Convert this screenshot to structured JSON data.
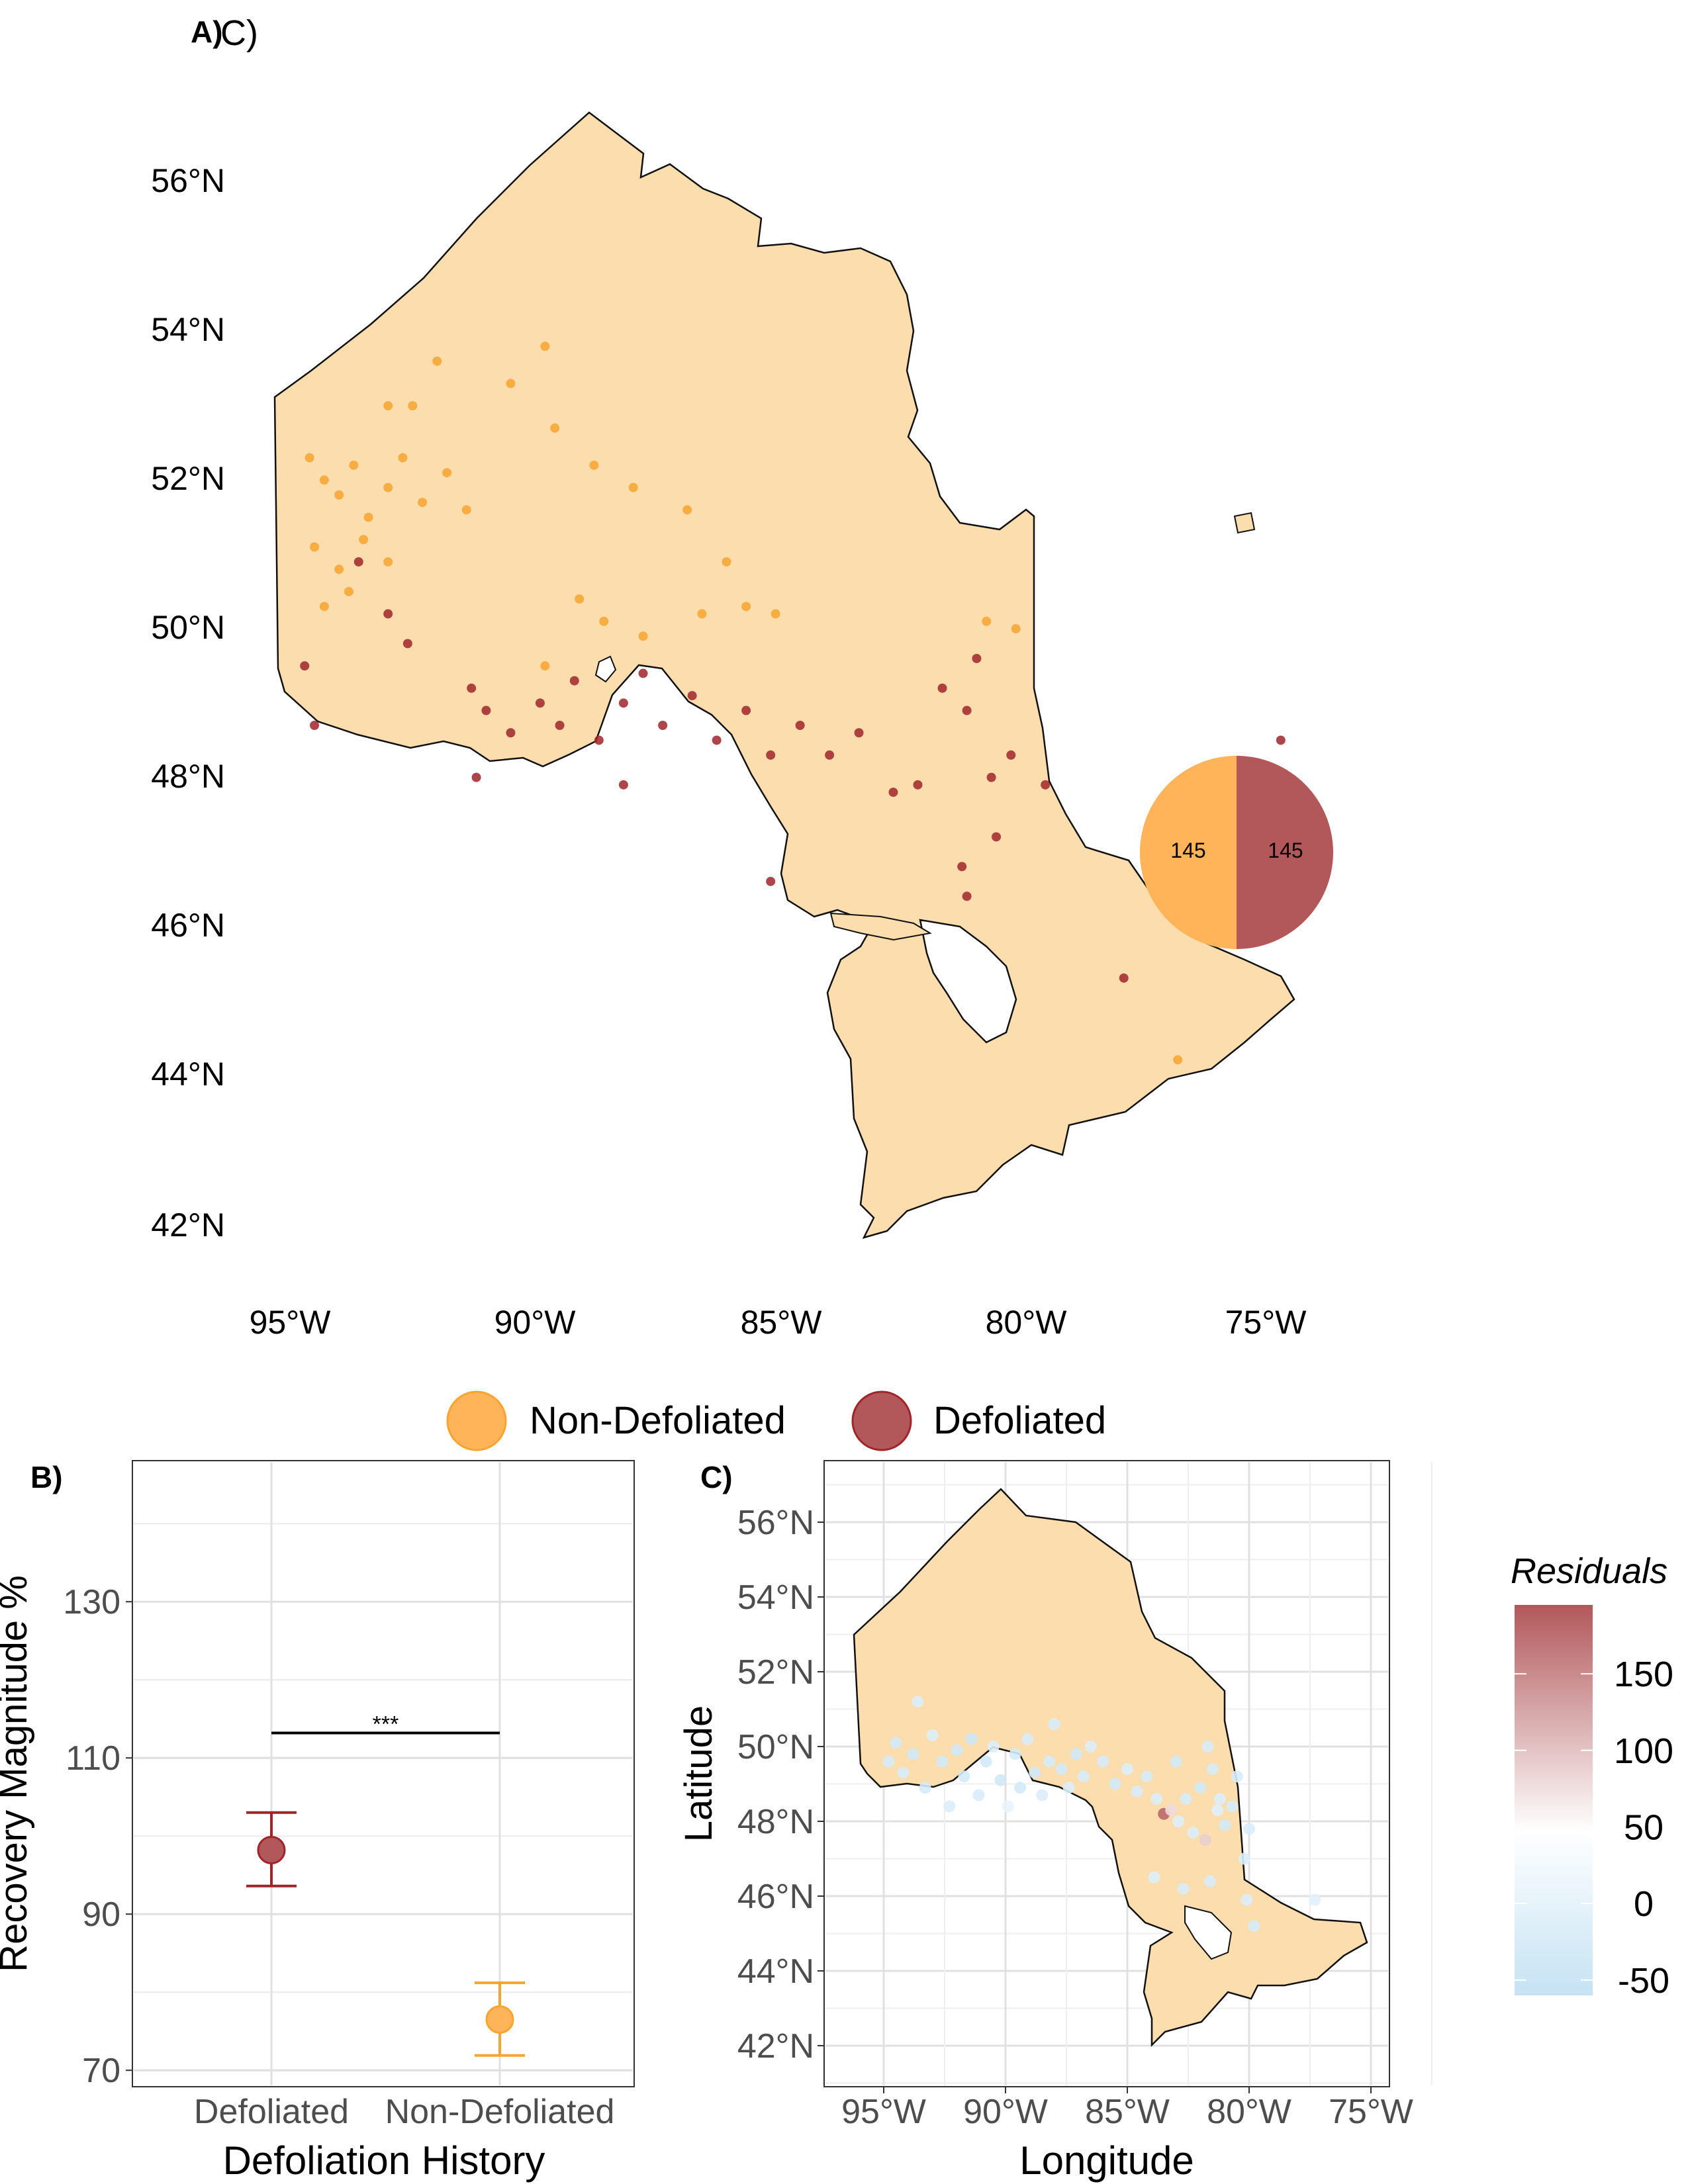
{
  "figure": {
    "panel_a": {
      "label": "A)",
      "label_overlap": "C)",
      "lat_ticks": [
        "56°N",
        "54°N",
        "52°N",
        "50°N",
        "48°N",
        "46°N",
        "44°N",
        "42°N"
      ],
      "lon_ticks": [
        "95°W",
        "90°W",
        "85°W",
        "80°W",
        "75°W"
      ],
      "pie": {
        "non_defoliated_count": "145",
        "defoliated_count": "145"
      }
    },
    "legend": {
      "non_defoliated": "Non-Defoliated",
      "defoliated": "Defoliated"
    },
    "panel_b": {
      "label": "B)",
      "ylabel": "Recovery Magnitude %",
      "xlabel": "Defoliation History",
      "yticks": [
        "130",
        "110",
        "90",
        "70"
      ],
      "categories": [
        "Defoliated",
        "Non-Defoliated"
      ],
      "significance": "***"
    },
    "panel_c": {
      "label": "C)",
      "ylabel": "Latitude",
      "xlabel": "Longitude",
      "lat_ticks": [
        "56°N",
        "54°N",
        "52°N",
        "50°N",
        "48°N",
        "46°N",
        "44°N",
        "42°N"
      ],
      "lon_ticks": [
        "95°W",
        "90°W",
        "85°W",
        "80°W",
        "75°W"
      ],
      "colorbar_title": "Residuals",
      "colorbar_ticks": [
        "150",
        "100",
        "50",
        "0",
        "-50"
      ]
    }
  },
  "colors": {
    "non_defoliated": "#F7A530",
    "defoliated": "#A0242A",
    "land": "#FCDDAD",
    "pie_non": "#FFB45A",
    "pie_def": "#B2585B",
    "resid_high": "#B2585B",
    "resid_mid": "#FFFFFF",
    "resid_low": "#C5E3F4"
  },
  "chart_data": [
    {
      "type": "scatter",
      "panel": "A",
      "title": "",
      "series": [
        {
          "name": "Non-Defoliated",
          "count": 145,
          "points": [
            [
              -94.6,
              52.9
            ],
            [
              -94.3,
              52.6
            ],
            [
              -94.0,
              52.4
            ],
            [
              -93.7,
              52.8
            ],
            [
              -93.4,
              52.1
            ],
            [
              -93.0,
              52.5
            ],
            [
              -92.7,
              52.9
            ],
            [
              -92.3,
              52.3
            ],
            [
              -91.8,
              52.7
            ],
            [
              -91.4,
              52.2
            ],
            [
              -94.5,
              51.7
            ],
            [
              -94.0,
              51.4
            ],
            [
              -93.5,
              51.8
            ],
            [
              -93.0,
              51.5
            ],
            [
              -94.3,
              50.9
            ],
            [
              -93.8,
              51.1
            ],
            [
              -93.0,
              53.6
            ],
            [
              -92.5,
              53.6
            ],
            [
              -92.0,
              54.2
            ],
            [
              -90.5,
              53.9
            ],
            [
              -89.8,
              54.4
            ],
            [
              -89.6,
              53.3
            ],
            [
              -88.8,
              52.8
            ],
            [
              -88.0,
              52.5
            ],
            [
              -86.9,
              52.2
            ],
            [
              -86.1,
              51.5
            ],
            [
              -86.6,
              50.8
            ],
            [
              -87.8,
              50.5
            ],
            [
              -88.6,
              50.7
            ],
            [
              -89.8,
              50.1
            ],
            [
              -89.1,
              51.0
            ],
            [
              -85.7,
              50.9
            ],
            [
              -85.1,
              50.8
            ],
            [
              -80.8,
              50.7
            ],
            [
              -80.2,
              50.6
            ],
            [
              -76.9,
              44.8
            ]
          ]
        },
        {
          "name": "Defoliated",
          "count": 145,
          "points": [
            [
              -94.7,
              50.1
            ],
            [
              -94.5,
              49.3
            ],
            [
              -93.6,
              51.5
            ],
            [
              -93.0,
              50.8
            ],
            [
              -92.6,
              50.4
            ],
            [
              -91.3,
              49.8
            ],
            [
              -91.0,
              49.5
            ],
            [
              -90.5,
              49.2
            ],
            [
              -89.9,
              49.6
            ],
            [
              -89.5,
              49.3
            ],
            [
              -89.2,
              49.9
            ],
            [
              -88.7,
              49.1
            ],
            [
              -88.2,
              49.6
            ],
            [
              -87.8,
              50.0
            ],
            [
              -87.4,
              49.3
            ],
            [
              -86.8,
              49.7
            ],
            [
              -86.3,
              49.1
            ],
            [
              -85.7,
              49.5
            ],
            [
              -85.2,
              48.9
            ],
            [
              -84.6,
              49.3
            ],
            [
              -84.0,
              48.9
            ],
            [
              -83.4,
              49.2
            ],
            [
              -82.7,
              48.4
            ],
            [
              -82.2,
              48.5
            ],
            [
              -81.7,
              49.8
            ],
            [
              -81.2,
              49.5
            ],
            [
              -81.0,
              50.2
            ],
            [
              -80.7,
              48.6
            ],
            [
              -80.3,
              48.9
            ],
            [
              -79.6,
              48.5
            ],
            [
              -81.3,
              47.4
            ],
            [
              -81.2,
              47.0
            ],
            [
              -80.6,
              47.8
            ],
            [
              -85.2,
              47.2
            ],
            [
              -78.0,
              45.9
            ],
            [
              -74.8,
              49.1
            ],
            [
              -91.2,
              48.6
            ],
            [
              -88.2,
              48.5
            ]
          ]
        }
      ],
      "pie": {
        "type": "pie",
        "labels": [
          "Non-Defoliated",
          "Defoliated"
        ],
        "values": [
          145,
          145
        ]
      },
      "xlim": [
        -96,
        -74
      ],
      "ylim": [
        41.7,
        56.9
      ]
    },
    {
      "type": "scatter",
      "panel": "B",
      "title": "",
      "xlabel": "Defoliation History",
      "ylabel": "Recovery Magnitude %",
      "categories": [
        "Defoliated",
        "Non-Defoliated"
      ],
      "series": [
        {
          "name": "Defoliated",
          "mean": 98.2,
          "ci_low": 93.6,
          "ci_high": 103.0
        },
        {
          "name": "Non-Defoliated",
          "mean": 76.5,
          "ci_low": 71.9,
          "ci_high": 81.2
        }
      ],
      "significance_bar": {
        "y": 113.2,
        "label": "***"
      },
      "ylim": [
        69,
        143
      ],
      "yticks": [
        70,
        90,
        110,
        130
      ],
      "grid": true
    },
    {
      "type": "scatter",
      "panel": "C",
      "title": "",
      "xlabel": "Longitude",
      "ylabel": "Latitude",
      "colorbar": {
        "title": "Residuals",
        "range": [
          -60,
          195
        ],
        "ticks": [
          150,
          100,
          50,
          0,
          -50
        ]
      },
      "points": [
        [
          -94.8,
          49.6,
          -30
        ],
        [
          -94.5,
          50.1,
          -35
        ],
        [
          -94.2,
          49.3,
          -25
        ],
        [
          -93.8,
          49.8,
          -40
        ],
        [
          -93.6,
          51.2,
          -20
        ],
        [
          -93.3,
          48.9,
          -30
        ],
        [
          -93.0,
          50.3,
          -15
        ],
        [
          -92.6,
          49.6,
          -35
        ],
        [
          -92.3,
          48.4,
          -20
        ],
        [
          -92.0,
          49.9,
          -40
        ],
        [
          -91.7,
          49.2,
          -30
        ],
        [
          -91.4,
          50.2,
          -45
        ],
        [
          -91.1,
          48.7,
          -25
        ],
        [
          -90.8,
          49.6,
          -35
        ],
        [
          -90.5,
          50.0,
          -20
        ],
        [
          -90.2,
          49.1,
          -40
        ],
        [
          -89.9,
          48.4,
          5
        ],
        [
          -89.6,
          49.8,
          -30
        ],
        [
          -89.4,
          48.9,
          -35
        ],
        [
          -89.1,
          50.2,
          -25
        ],
        [
          -88.8,
          49.3,
          -40
        ],
        [
          -88.5,
          48.7,
          -20
        ],
        [
          -88.2,
          49.6,
          -30
        ],
        [
          -88.0,
          50.6,
          -25
        ],
        [
          -87.7,
          49.4,
          -35
        ],
        [
          -87.4,
          48.9,
          -20
        ],
        [
          -87.1,
          49.8,
          -40
        ],
        [
          -86.8,
          49.2,
          -25
        ],
        [
          -86.5,
          50.0,
          -20
        ],
        [
          -86.0,
          49.6,
          -30
        ],
        [
          -85.5,
          49.0,
          -35
        ],
        [
          -85.0,
          49.4,
          -15
        ],
        [
          -84.6,
          48.8,
          -25
        ],
        [
          -84.2,
          49.2,
          -30
        ],
        [
          -83.8,
          48.6,
          -20
        ],
        [
          -83.5,
          48.2,
          180
        ],
        [
          -83.2,
          48.3,
          80
        ],
        [
          -82.9,
          48.0,
          -15
        ],
        [
          -82.6,
          48.6,
          -30
        ],
        [
          -82.3,
          47.7,
          -20
        ],
        [
          -82.0,
          48.9,
          -35
        ],
        [
          -81.7,
          50.0,
          -25
        ],
        [
          -81.5,
          49.4,
          -30
        ],
        [
          -81.3,
          48.3,
          -10
        ],
        [
          -81.8,
          47.5,
          90
        ],
        [
          -81.6,
          46.4,
          -25
        ],
        [
          -81.2,
          48.6,
          -20
        ],
        [
          -81.0,
          47.9,
          -35
        ],
        [
          -80.7,
          48.4,
          -30
        ],
        [
          -80.5,
          49.2,
          -25
        ],
        [
          -80.2,
          47.0,
          -20
        ],
        [
          -83.9,
          46.5,
          -15
        ],
        [
          -82.7,
          46.2,
          -25
        ],
        [
          -80.1,
          45.9,
          -20
        ],
        [
          -79.8,
          45.2,
          -30
        ],
        [
          -77.3,
          45.9,
          -10
        ],
        [
          -80.0,
          47.8,
          -25
        ],
        [
          -83.0,
          49.6,
          -35
        ]
      ],
      "xlim": [
        -96,
        -72.5
      ],
      "ylim": [
        41.5,
        57.2
      ],
      "grid": true
    }
  ]
}
